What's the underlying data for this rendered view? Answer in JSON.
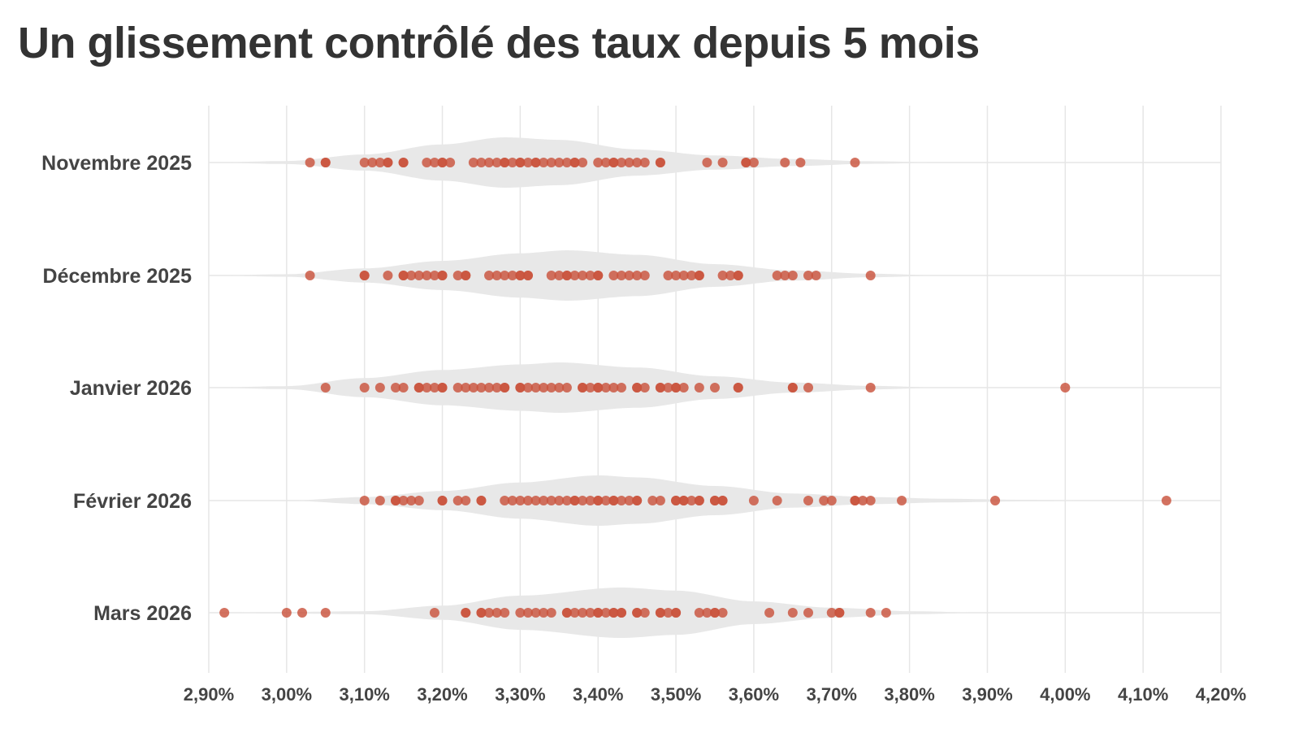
{
  "title": "Un glissement contrôlé des taux depuis 5 mois",
  "chart_data": {
    "type": "scatter",
    "subtype": "violin-strip",
    "title": "Un glissement contrôlé des taux depuis 5 mois",
    "xlabel": "",
    "ylabel": "",
    "xlim": [
      2.9,
      4.2
    ],
    "x_ticks": [
      2.9,
      3.0,
      3.1,
      3.2,
      3.3,
      3.4,
      3.5,
      3.6,
      3.7,
      3.8,
      3.9,
      4.0,
      4.1,
      4.2
    ],
    "x_tick_labels": [
      "2,90%",
      "3,00%",
      "3,10%",
      "3,20%",
      "3,30%",
      "3,40%",
      "3,50%",
      "3,60%",
      "3,70%",
      "3,80%",
      "3,90%",
      "4,00%",
      "4,10%",
      "4,20%"
    ],
    "grid": true,
    "colors": {
      "point": "#c9533d",
      "violin": "#e8e8e8",
      "grid": "#e6e6e6",
      "text": "#444444"
    },
    "categories": [
      "Novembre 2025",
      "Décembre 2025",
      "Janvier 2026",
      "Février 2026",
      "Mars 2026"
    ],
    "series": [
      {
        "category": "Novembre 2025",
        "values": [
          3.03,
          3.05,
          3.05,
          3.1,
          3.11,
          3.12,
          3.13,
          3.13,
          3.15,
          3.15,
          3.18,
          3.19,
          3.2,
          3.2,
          3.21,
          3.24,
          3.25,
          3.26,
          3.27,
          3.28,
          3.28,
          3.29,
          3.3,
          3.3,
          3.31,
          3.32,
          3.32,
          3.33,
          3.34,
          3.35,
          3.36,
          3.37,
          3.37,
          3.38,
          3.4,
          3.41,
          3.42,
          3.42,
          3.43,
          3.44,
          3.45,
          3.46,
          3.48,
          3.48,
          3.54,
          3.56,
          3.59,
          3.59,
          3.6,
          3.64,
          3.66,
          3.73
        ],
        "violin": [
          [
            2.9,
            0.0
          ],
          [
            3.0,
            0.06
          ],
          [
            3.1,
            0.32
          ],
          [
            3.2,
            0.72
          ],
          [
            3.28,
            1.0
          ],
          [
            3.35,
            0.9
          ],
          [
            3.45,
            0.52
          ],
          [
            3.55,
            0.28
          ],
          [
            3.65,
            0.14
          ],
          [
            3.75,
            0.05
          ],
          [
            3.85,
            0.0
          ]
        ]
      },
      {
        "category": "Décembre 2025",
        "values": [
          3.03,
          3.1,
          3.1,
          3.13,
          3.15,
          3.15,
          3.16,
          3.17,
          3.18,
          3.19,
          3.2,
          3.2,
          3.22,
          3.23,
          3.23,
          3.26,
          3.27,
          3.28,
          3.29,
          3.3,
          3.3,
          3.31,
          3.31,
          3.34,
          3.35,
          3.36,
          3.36,
          3.37,
          3.38,
          3.39,
          3.4,
          3.4,
          3.42,
          3.43,
          3.44,
          3.45,
          3.46,
          3.49,
          3.5,
          3.51,
          3.52,
          3.53,
          3.53,
          3.56,
          3.57,
          3.58,
          3.58,
          3.63,
          3.64,
          3.65,
          3.67,
          3.68,
          3.75
        ],
        "violin": [
          [
            2.9,
            0.0
          ],
          [
            3.0,
            0.05
          ],
          [
            3.1,
            0.28
          ],
          [
            3.2,
            0.58
          ],
          [
            3.3,
            0.88
          ],
          [
            3.36,
            1.0
          ],
          [
            3.45,
            0.82
          ],
          [
            3.55,
            0.45
          ],
          [
            3.65,
            0.2
          ],
          [
            3.75,
            0.07
          ],
          [
            3.85,
            0.0
          ]
        ]
      },
      {
        "category": "Janvier 2026",
        "values": [
          3.05,
          3.1,
          3.12,
          3.14,
          3.15,
          3.17,
          3.17,
          3.18,
          3.19,
          3.2,
          3.2,
          3.22,
          3.23,
          3.24,
          3.25,
          3.26,
          3.27,
          3.28,
          3.28,
          3.3,
          3.3,
          3.31,
          3.32,
          3.33,
          3.34,
          3.35,
          3.36,
          3.38,
          3.38,
          3.39,
          3.4,
          3.4,
          3.41,
          3.42,
          3.43,
          3.45,
          3.45,
          3.46,
          3.48,
          3.48,
          3.49,
          3.5,
          3.5,
          3.51,
          3.53,
          3.55,
          3.58,
          3.58,
          3.65,
          3.65,
          3.67,
          3.75,
          4.0
        ],
        "violin": [
          [
            2.9,
            0.0
          ],
          [
            3.0,
            0.06
          ],
          [
            3.1,
            0.38
          ],
          [
            3.2,
            0.7
          ],
          [
            3.3,
            0.92
          ],
          [
            3.35,
            1.0
          ],
          [
            3.45,
            0.8
          ],
          [
            3.55,
            0.45
          ],
          [
            3.65,
            0.2
          ],
          [
            3.75,
            0.07
          ],
          [
            3.85,
            0.0
          ]
        ]
      },
      {
        "category": "Février 2026",
        "values": [
          3.1,
          3.12,
          3.14,
          3.14,
          3.15,
          3.16,
          3.17,
          3.2,
          3.2,
          3.22,
          3.23,
          3.25,
          3.25,
          3.28,
          3.29,
          3.3,
          3.31,
          3.32,
          3.33,
          3.34,
          3.35,
          3.36,
          3.37,
          3.37,
          3.38,
          3.39,
          3.4,
          3.4,
          3.41,
          3.42,
          3.42,
          3.43,
          3.44,
          3.45,
          3.45,
          3.47,
          3.48,
          3.5,
          3.5,
          3.51,
          3.51,
          3.52,
          3.53,
          3.53,
          3.55,
          3.55,
          3.56,
          3.56,
          3.6,
          3.63,
          3.67,
          3.69,
          3.7,
          3.73,
          3.73,
          3.74,
          3.75,
          3.79,
          3.91,
          4.13
        ],
        "violin": [
          [
            3.0,
            0.0
          ],
          [
            3.1,
            0.14
          ],
          [
            3.2,
            0.38
          ],
          [
            3.3,
            0.72
          ],
          [
            3.4,
            1.0
          ],
          [
            3.45,
            0.92
          ],
          [
            3.55,
            0.58
          ],
          [
            3.65,
            0.28
          ],
          [
            3.75,
            0.14
          ],
          [
            3.85,
            0.07
          ],
          [
            3.95,
            0.03
          ],
          [
            4.05,
            0.0
          ]
        ]
      },
      {
        "category": "Mars 2026",
        "values": [
          2.92,
          3.0,
          3.02,
          3.05,
          3.19,
          3.23,
          3.23,
          3.25,
          3.25,
          3.26,
          3.27,
          3.28,
          3.3,
          3.31,
          3.32,
          3.33,
          3.34,
          3.36,
          3.36,
          3.37,
          3.38,
          3.39,
          3.4,
          3.4,
          3.41,
          3.42,
          3.42,
          3.43,
          3.43,
          3.45,
          3.45,
          3.46,
          3.48,
          3.48,
          3.49,
          3.5,
          3.5,
          3.53,
          3.54,
          3.55,
          3.55,
          3.56,
          3.62,
          3.65,
          3.67,
          3.7,
          3.71,
          3.71,
          3.75,
          3.77
        ],
        "violin": [
          [
            2.9,
            0.0
          ],
          [
            3.0,
            0.03
          ],
          [
            3.1,
            0.06
          ],
          [
            3.2,
            0.28
          ],
          [
            3.3,
            0.68
          ],
          [
            3.43,
            1.0
          ],
          [
            3.5,
            0.88
          ],
          [
            3.6,
            0.45
          ],
          [
            3.7,
            0.2
          ],
          [
            3.8,
            0.06
          ],
          [
            3.9,
            0.0
          ]
        ]
      }
    ]
  }
}
